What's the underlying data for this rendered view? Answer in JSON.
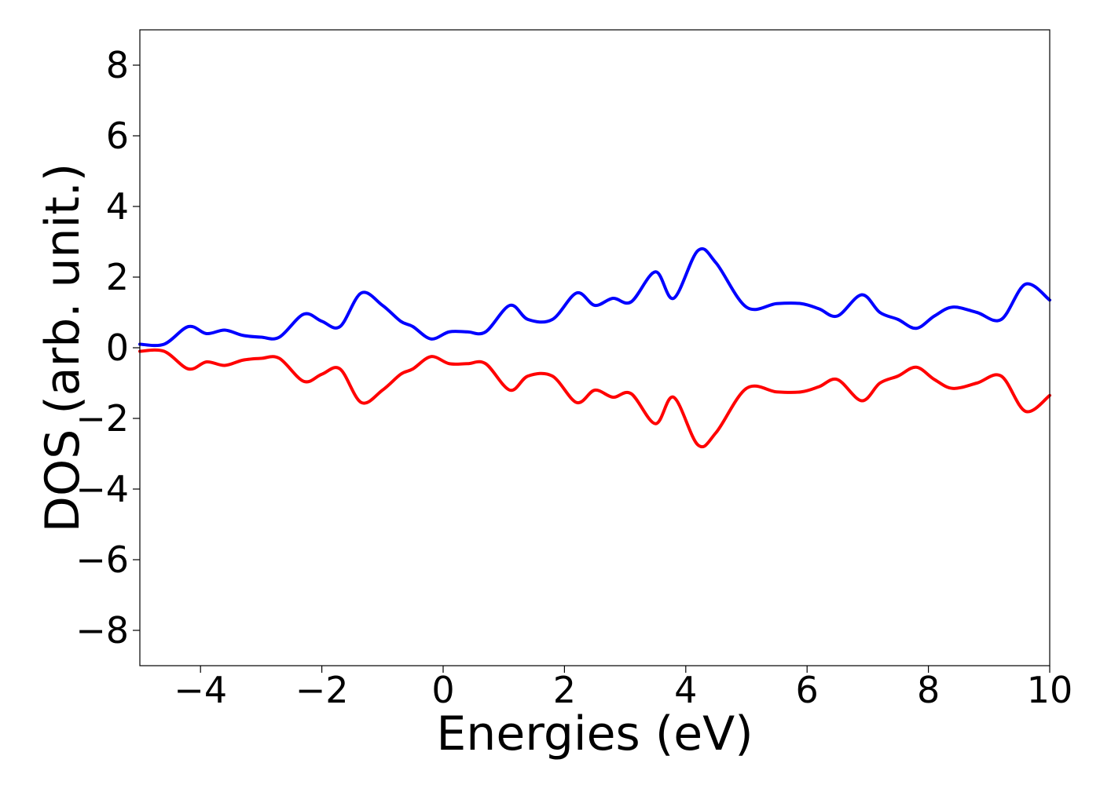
{
  "chart_data": {
    "type": "line",
    "title": "",
    "xlabel": "Energies (eV)",
    "ylabel": "DOS (arb. unit.)",
    "xlim": [
      -5,
      10
    ],
    "ylim": [
      -9,
      9
    ],
    "x_ticks": [
      -4,
      -2,
      0,
      2,
      4,
      6,
      8,
      10
    ],
    "x_tick_labels": [
      "−4",
      "−2",
      "0",
      "2",
      "4",
      "6",
      "8",
      "10"
    ],
    "y_ticks": [
      -8,
      -6,
      -4,
      -2,
      0,
      2,
      4,
      6,
      8
    ],
    "y_tick_labels": [
      "−8",
      "−6",
      "−4",
      "−2",
      "0",
      "2",
      "4",
      "6",
      "8"
    ],
    "grid": false,
    "legend": "none",
    "x": [
      -5.0,
      -4.6,
      -4.2,
      -3.9,
      -3.6,
      -3.3,
      -3.0,
      -2.7,
      -2.3,
      -2.0,
      -1.7,
      -1.35,
      -1.0,
      -0.7,
      -0.5,
      -0.2,
      0.1,
      0.4,
      0.7,
      1.1,
      1.4,
      1.8,
      2.2,
      2.5,
      2.8,
      3.1,
      3.5,
      3.8,
      4.2,
      4.5,
      5.0,
      5.5,
      5.9,
      6.2,
      6.5,
      6.9,
      7.2,
      7.5,
      7.8,
      8.1,
      8.4,
      8.8,
      9.2,
      9.6,
      10.0
    ],
    "series": [
      {
        "color": "#0000ff",
        "values": [
          0.1,
          0.1,
          0.6,
          0.4,
          0.5,
          0.35,
          0.3,
          0.3,
          0.95,
          0.75,
          0.6,
          1.55,
          1.2,
          0.75,
          0.6,
          0.25,
          0.45,
          0.45,
          0.45,
          1.2,
          0.8,
          0.8,
          1.55,
          1.2,
          1.4,
          1.3,
          2.15,
          1.4,
          2.75,
          2.4,
          1.15,
          1.25,
          1.25,
          1.1,
          0.9,
          1.5,
          1.0,
          0.8,
          0.55,
          0.9,
          1.15,
          1.0,
          0.8,
          1.8,
          1.35
        ]
      },
      {
        "color": "#ff0000",
        "values": [
          -0.1,
          -0.1,
          -0.6,
          -0.4,
          -0.5,
          -0.35,
          -0.3,
          -0.3,
          -0.95,
          -0.75,
          -0.6,
          -1.55,
          -1.2,
          -0.75,
          -0.6,
          -0.25,
          -0.45,
          -0.45,
          -0.45,
          -1.2,
          -0.8,
          -0.8,
          -1.55,
          -1.2,
          -1.4,
          -1.3,
          -2.15,
          -1.4,
          -2.75,
          -2.4,
          -1.15,
          -1.25,
          -1.25,
          -1.1,
          -0.9,
          -1.5,
          -1.0,
          -0.8,
          -0.55,
          -0.9,
          -1.15,
          -1.0,
          -0.8,
          -1.8,
          -1.35
        ]
      }
    ]
  }
}
